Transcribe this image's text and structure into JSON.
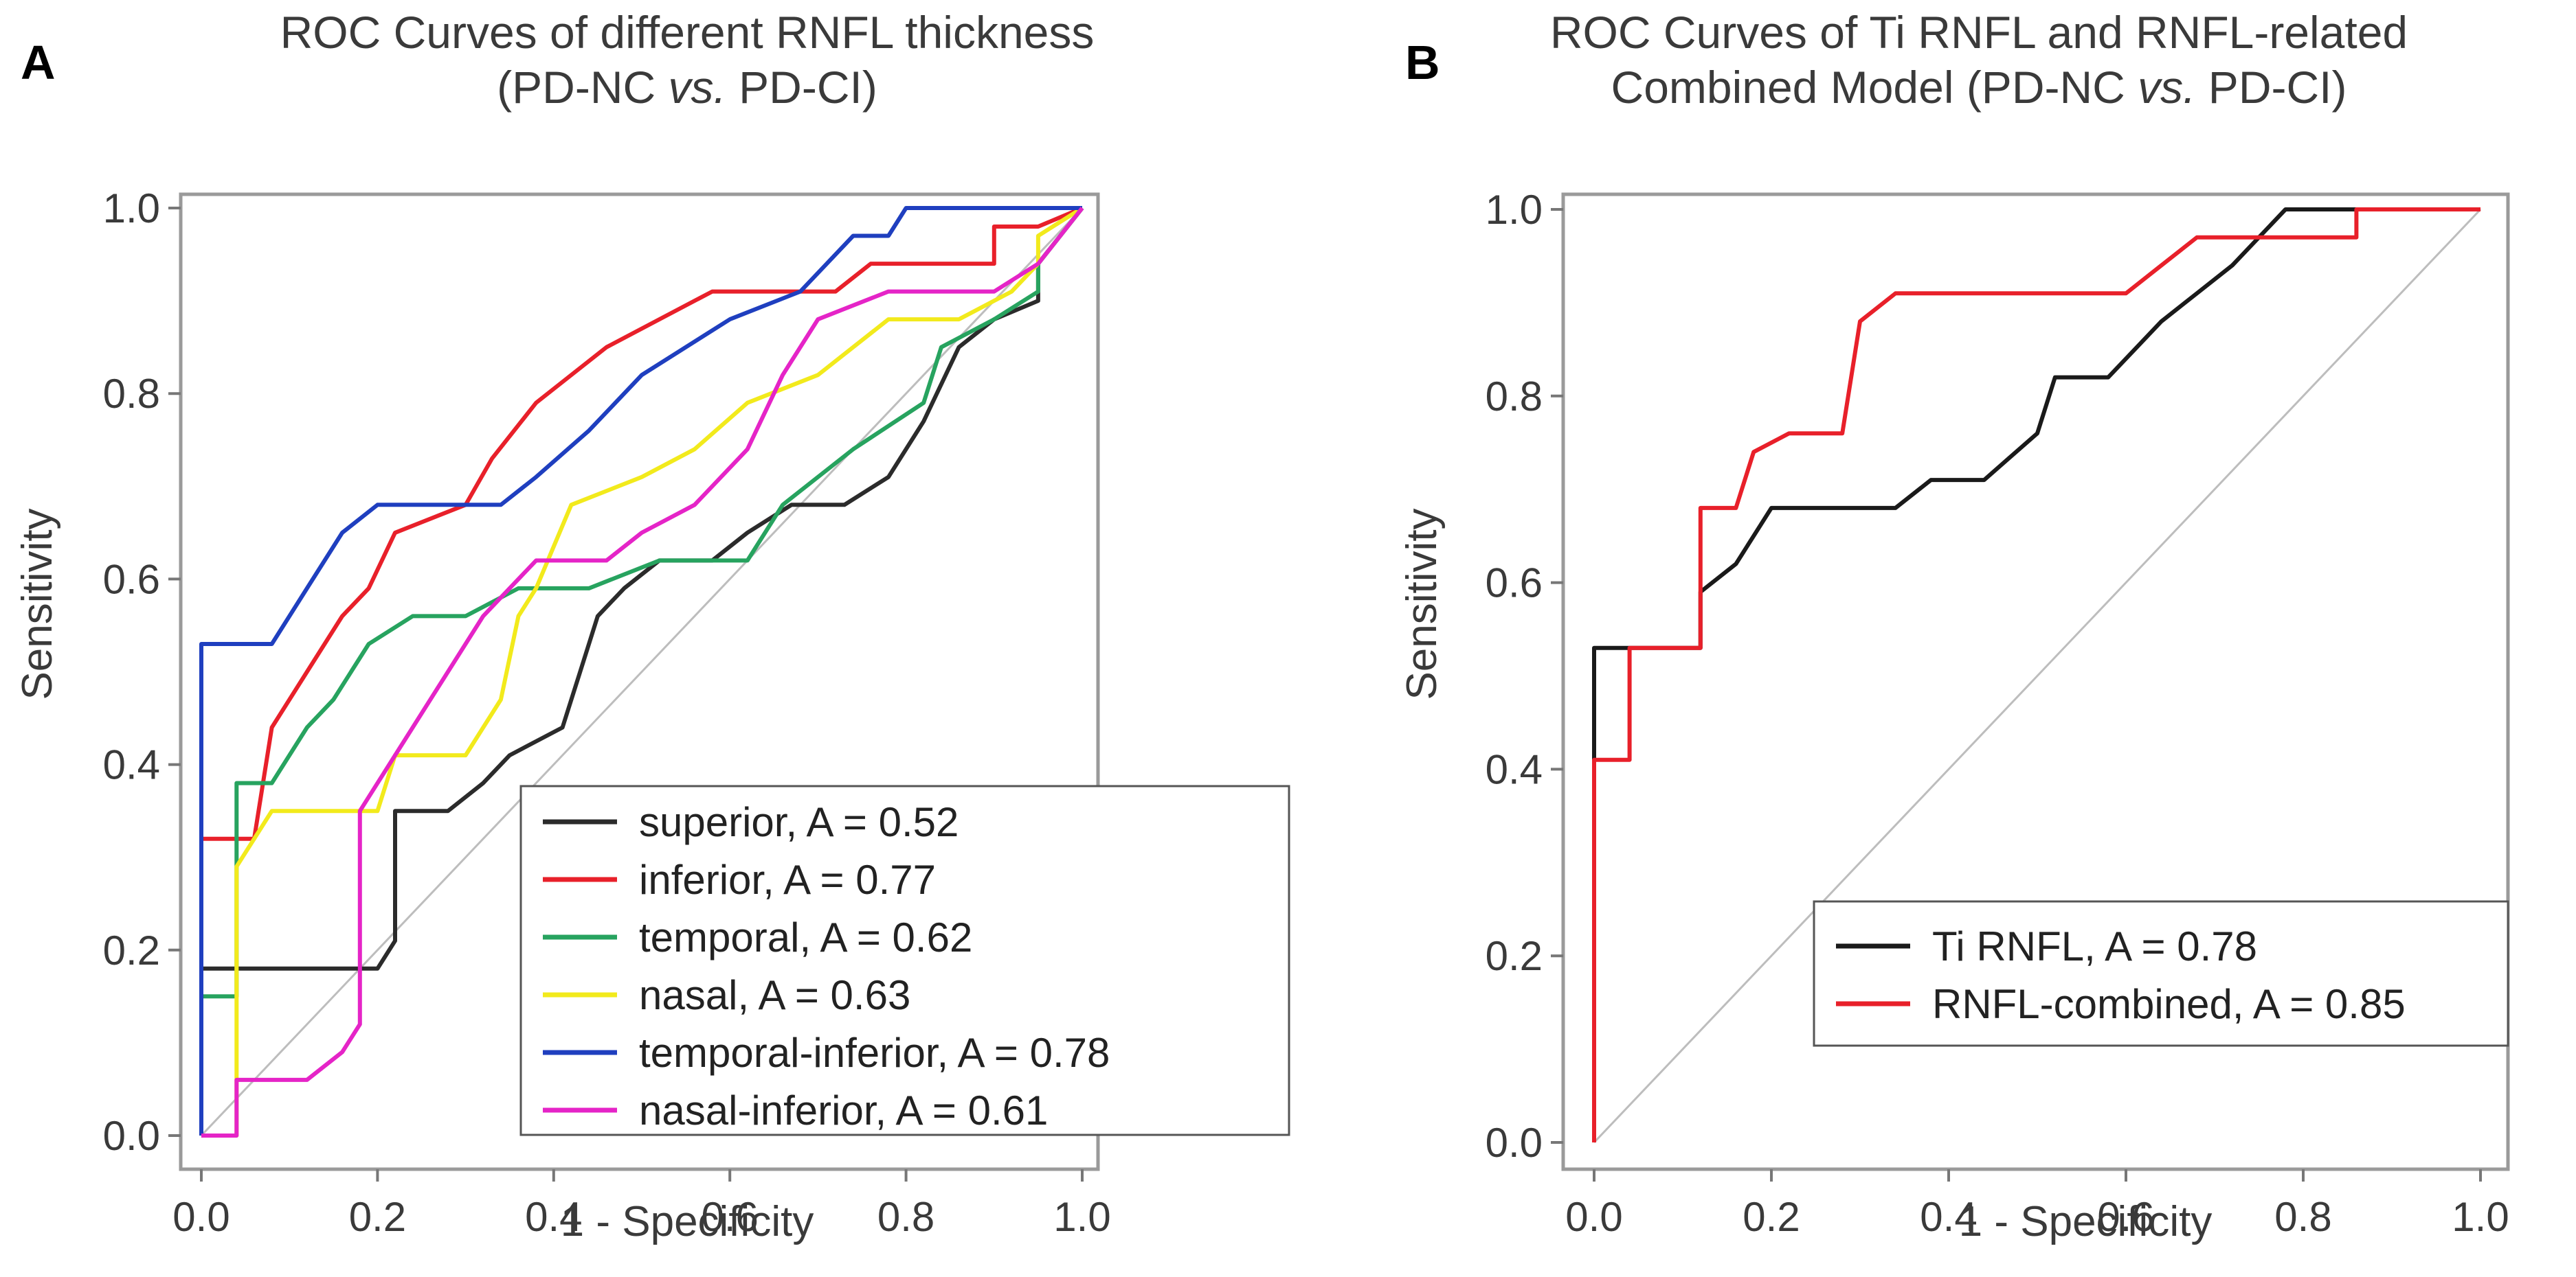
{
  "panels": [
    {
      "label": "A",
      "title_line1": "ROC Curves of different RNFL thickness",
      "title_line2_a": "(PD-NC ",
      "title_line2_vs": "vs.",
      "title_line2_b": " PD-CI)",
      "xlabel": "1 - Specificity",
      "ylabel": "Sensitivity"
    },
    {
      "label": "B",
      "title_line1": "ROC Curves of Ti RNFL and RNFL-related",
      "title_line2_a": "Combined Model (PD-NC ",
      "title_line2_vs": "vs.",
      "title_line2_b": " PD-CI)",
      "xlabel": "1 - Specificity",
      "ylabel": "Sensitivity"
    }
  ],
  "chart_data": [
    {
      "type": "line",
      "title": "ROC Curves of different RNFL thickness (PD-NC vs. PD-CI)",
      "xlabel": "1 - Specificity",
      "ylabel": "Sensitivity",
      "xlim": [
        0,
        1
      ],
      "ylim": [
        0,
        1
      ],
      "x_ticks": [
        "0.0",
        "0.2",
        "0.4",
        "0.6",
        "0.8",
        "1.0"
      ],
      "y_ticks": [
        "0.0",
        "0.2",
        "0.4",
        "0.6",
        "0.8",
        "1.0"
      ],
      "reference_line": true,
      "legend_position": "bottom-right",
      "series": [
        {
          "name": "superior, A = 0.52",
          "color": "#2b2b2b",
          "points": [
            [
              0,
              0
            ],
            [
              0,
              0.18
            ],
            [
              0.2,
              0.18
            ],
            [
              0.22,
              0.21
            ],
            [
              0.22,
              0.35
            ],
            [
              0.28,
              0.35
            ],
            [
              0.32,
              0.38
            ],
            [
              0.35,
              0.41
            ],
            [
              0.41,
              0.44
            ],
            [
              0.43,
              0.5
            ],
            [
              0.45,
              0.56
            ],
            [
              0.48,
              0.59
            ],
            [
              0.52,
              0.62
            ],
            [
              0.58,
              0.62
            ],
            [
              0.62,
              0.65
            ],
            [
              0.67,
              0.68
            ],
            [
              0.73,
              0.68
            ],
            [
              0.78,
              0.71
            ],
            [
              0.82,
              0.77
            ],
            [
              0.86,
              0.85
            ],
            [
              0.9,
              0.88
            ],
            [
              0.95,
              0.9
            ],
            [
              0.95,
              0.94
            ],
            [
              1,
              1
            ]
          ]
        },
        {
          "name": "inferior, A = 0.77",
          "color": "#e8202a",
          "points": [
            [
              0,
              0
            ],
            [
              0,
              0.32
            ],
            [
              0.06,
              0.32
            ],
            [
              0.08,
              0.44
            ],
            [
              0.12,
              0.5
            ],
            [
              0.16,
              0.56
            ],
            [
              0.19,
              0.59
            ],
            [
              0.22,
              0.65
            ],
            [
              0.3,
              0.68
            ],
            [
              0.33,
              0.73
            ],
            [
              0.38,
              0.79
            ],
            [
              0.42,
              0.82
            ],
            [
              0.46,
              0.85
            ],
            [
              0.52,
              0.88
            ],
            [
              0.58,
              0.91
            ],
            [
              0.72,
              0.91
            ],
            [
              0.76,
              0.94
            ],
            [
              0.9,
              0.94
            ],
            [
              0.9,
              0.98
            ],
            [
              0.95,
              0.98
            ],
            [
              1,
              1
            ]
          ]
        },
        {
          "name": "temporal, A = 0.62",
          "color": "#27a35f",
          "points": [
            [
              0,
              0
            ],
            [
              0,
              0.15
            ],
            [
              0.04,
              0.15
            ],
            [
              0.04,
              0.38
            ],
            [
              0.08,
              0.38
            ],
            [
              0.12,
              0.44
            ],
            [
              0.15,
              0.47
            ],
            [
              0.19,
              0.53
            ],
            [
              0.24,
              0.56
            ],
            [
              0.3,
              0.56
            ],
            [
              0.36,
              0.59
            ],
            [
              0.44,
              0.59
            ],
            [
              0.52,
              0.62
            ],
            [
              0.62,
              0.62
            ],
            [
              0.66,
              0.68
            ],
            [
              0.74,
              0.74
            ],
            [
              0.82,
              0.79
            ],
            [
              0.84,
              0.85
            ],
            [
              0.9,
              0.88
            ],
            [
              0.95,
              0.91
            ],
            [
              0.95,
              0.94
            ],
            [
              1,
              1
            ]
          ]
        },
        {
          "name": "nasal, A = 0.63",
          "color": "#f2ea1c",
          "points": [
            [
              0,
              0
            ],
            [
              0.04,
              0
            ],
            [
              0.04,
              0.29
            ],
            [
              0.08,
              0.35
            ],
            [
              0.2,
              0.35
            ],
            [
              0.22,
              0.41
            ],
            [
              0.3,
              0.41
            ],
            [
              0.34,
              0.47
            ],
            [
              0.36,
              0.56
            ],
            [
              0.38,
              0.59
            ],
            [
              0.42,
              0.68
            ],
            [
              0.5,
              0.71
            ],
            [
              0.56,
              0.74
            ],
            [
              0.62,
              0.79
            ],
            [
              0.7,
              0.82
            ],
            [
              0.78,
              0.88
            ],
            [
              0.86,
              0.88
            ],
            [
              0.92,
              0.91
            ],
            [
              0.95,
              0.94
            ],
            [
              0.95,
              0.97
            ],
            [
              1,
              1
            ]
          ]
        },
        {
          "name": "temporal-inferior, A = 0.78",
          "color": "#1f3fbf",
          "points": [
            [
              0,
              0
            ],
            [
              0,
              0.53
            ],
            [
              0.08,
              0.53
            ],
            [
              0.12,
              0.59
            ],
            [
              0.16,
              0.65
            ],
            [
              0.2,
              0.68
            ],
            [
              0.34,
              0.68
            ],
            [
              0.38,
              0.71
            ],
            [
              0.44,
              0.76
            ],
            [
              0.5,
              0.82
            ],
            [
              0.6,
              0.88
            ],
            [
              0.68,
              0.91
            ],
            [
              0.74,
              0.97
            ],
            [
              0.78,
              0.97
            ],
            [
              0.8,
              1
            ],
            [
              1,
              1
            ]
          ]
        },
        {
          "name": "nasal-inferior, A = 0.61",
          "color": "#e524c7",
          "points": [
            [
              0,
              0
            ],
            [
              0.04,
              0
            ],
            [
              0.04,
              0.06
            ],
            [
              0.12,
              0.06
            ],
            [
              0.16,
              0.09
            ],
            [
              0.18,
              0.12
            ],
            [
              0.18,
              0.35
            ],
            [
              0.22,
              0.41
            ],
            [
              0.26,
              0.47
            ],
            [
              0.32,
              0.56
            ],
            [
              0.38,
              0.62
            ],
            [
              0.46,
              0.62
            ],
            [
              0.5,
              0.65
            ],
            [
              0.56,
              0.68
            ],
            [
              0.62,
              0.74
            ],
            [
              0.66,
              0.82
            ],
            [
              0.7,
              0.88
            ],
            [
              0.78,
              0.91
            ],
            [
              0.9,
              0.91
            ],
            [
              0.95,
              0.94
            ],
            [
              1,
              1
            ]
          ]
        }
      ]
    },
    {
      "type": "line",
      "title": "ROC Curves of Ti RNFL and RNFL-related Combined Model (PD-NC vs. PD-CI)",
      "xlabel": "1 - Specificity",
      "ylabel": "Sensitivity",
      "xlim": [
        0,
        1
      ],
      "ylim": [
        0,
        1
      ],
      "x_ticks": [
        "0.0",
        "0.2",
        "0.4",
        "0.6",
        "0.8",
        "1.0"
      ],
      "y_ticks": [
        "0.0",
        "0.2",
        "0.4",
        "0.6",
        "0.8",
        "1.0"
      ],
      "reference_line": true,
      "legend_position": "bottom-right",
      "series": [
        {
          "name": "Ti RNFL, A = 0.78",
          "color": "#1a1a1a",
          "points": [
            [
              0,
              0
            ],
            [
              0,
              0.53
            ],
            [
              0.06,
              0.53
            ],
            [
              0.12,
              0.53
            ],
            [
              0.12,
              0.59
            ],
            [
              0.16,
              0.62
            ],
            [
              0.2,
              0.68
            ],
            [
              0.34,
              0.68
            ],
            [
              0.38,
              0.71
            ],
            [
              0.44,
              0.71
            ],
            [
              0.5,
              0.76
            ],
            [
              0.52,
              0.82
            ],
            [
              0.58,
              0.82
            ],
            [
              0.64,
              0.88
            ],
            [
              0.68,
              0.91
            ],
            [
              0.72,
              0.94
            ],
            [
              0.78,
              1
            ],
            [
              1,
              1
            ]
          ]
        },
        {
          "name": "RNFL-combined, A = 0.85",
          "color": "#e8202a",
          "points": [
            [
              0,
              0
            ],
            [
              0,
              0.41
            ],
            [
              0.04,
              0.41
            ],
            [
              0.04,
              0.53
            ],
            [
              0.12,
              0.53
            ],
            [
              0.12,
              0.68
            ],
            [
              0.16,
              0.68
            ],
            [
              0.18,
              0.74
            ],
            [
              0.22,
              0.76
            ],
            [
              0.28,
              0.76
            ],
            [
              0.3,
              0.88
            ],
            [
              0.34,
              0.91
            ],
            [
              0.6,
              0.91
            ],
            [
              0.64,
              0.94
            ],
            [
              0.68,
              0.97
            ],
            [
              0.86,
              0.97
            ],
            [
              0.86,
              1
            ],
            [
              1,
              1
            ]
          ]
        }
      ]
    }
  ]
}
